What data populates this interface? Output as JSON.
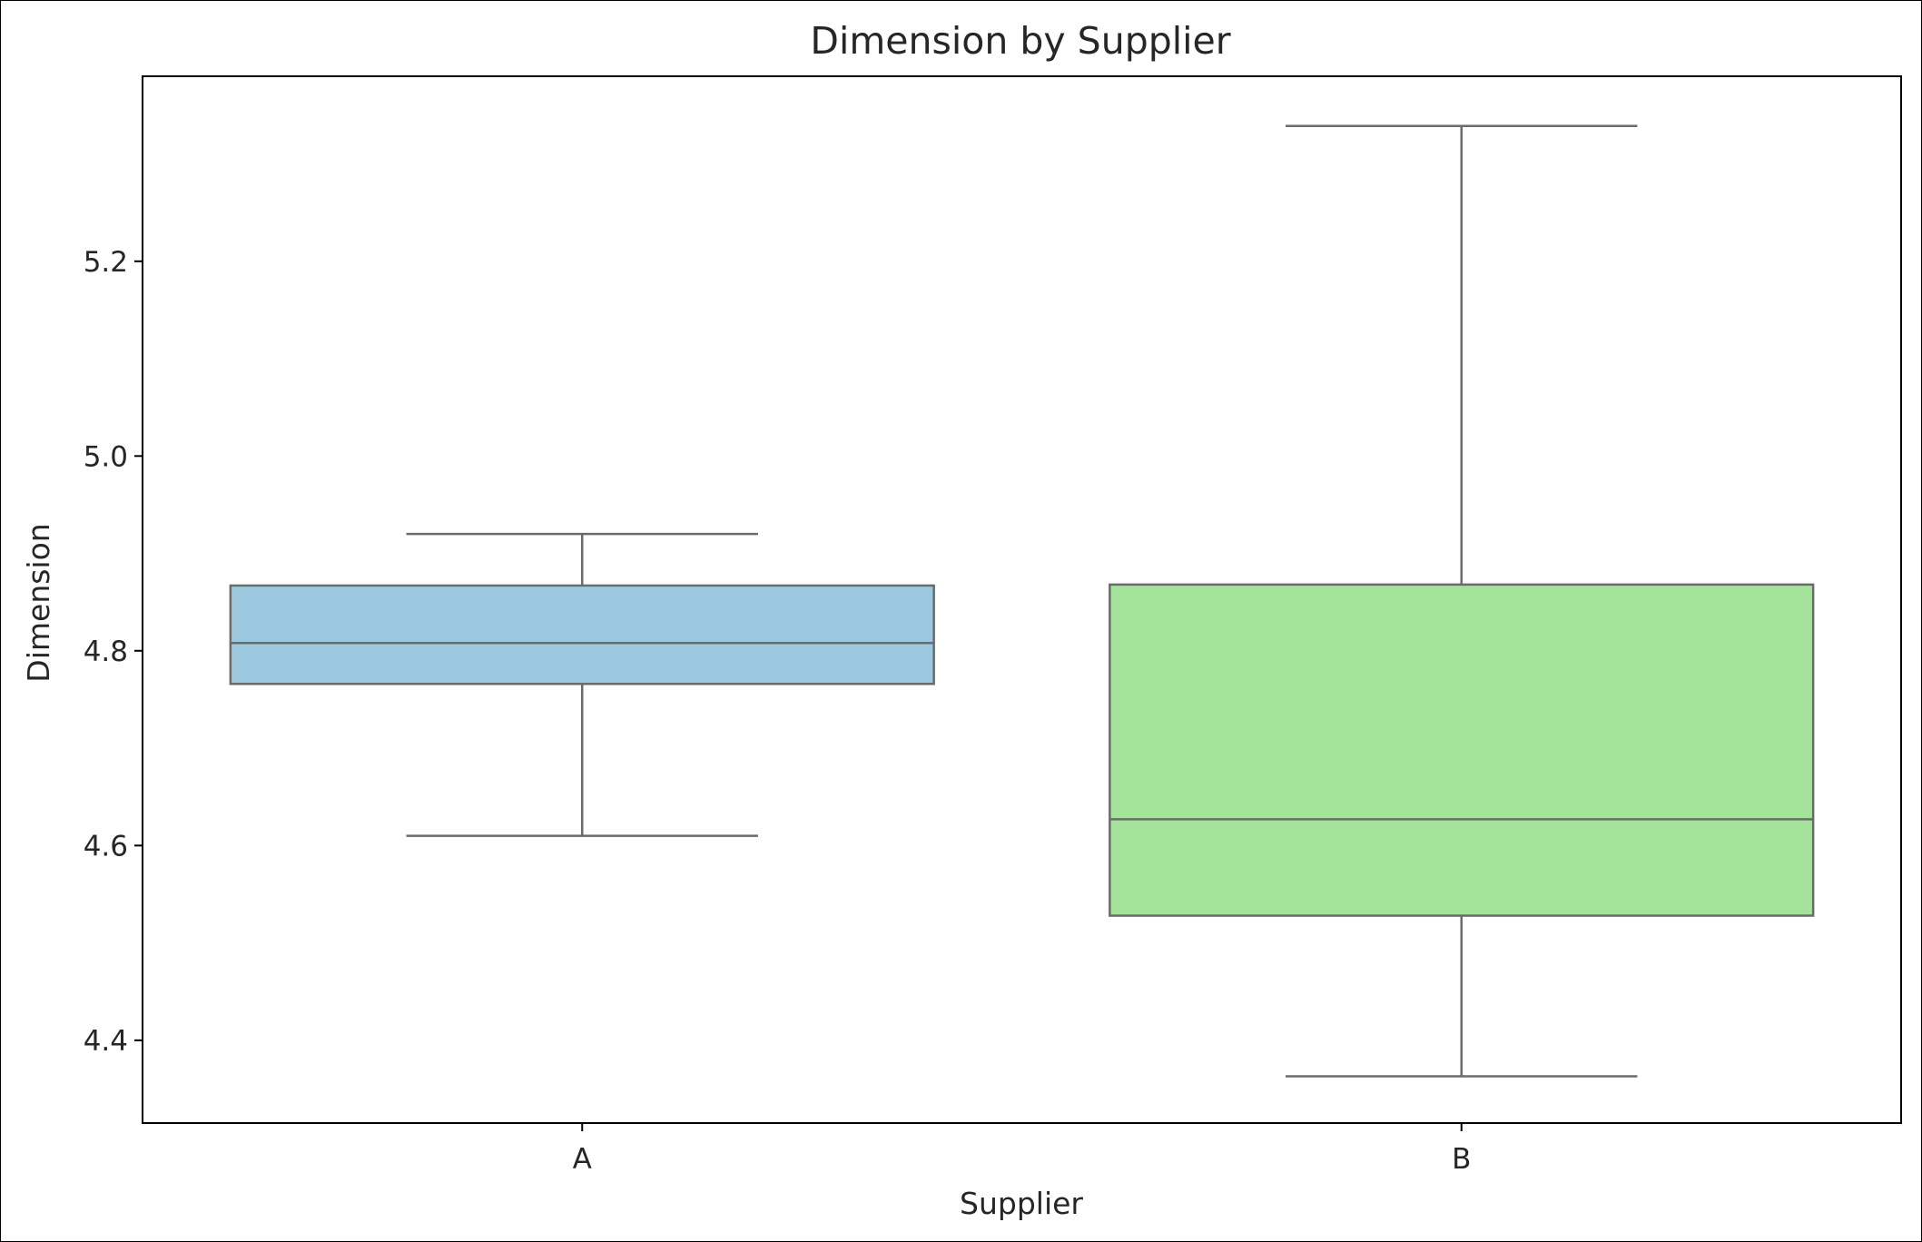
{
  "chart_data": {
    "type": "box",
    "title": "Dimension by Supplier",
    "xlabel": "Supplier",
    "ylabel": "Dimension",
    "categories": [
      "A",
      "B"
    ],
    "yticks": [
      "4.4",
      "4.6",
      "4.8",
      "5.0",
      "5.2"
    ],
    "ylim": [
      4.315,
      5.39
    ],
    "grid": false,
    "boxes": [
      {
        "category": "A",
        "whisker_low": 4.61,
        "q1": 4.766,
        "median": 4.808,
        "q3": 4.867,
        "whisker_high": 4.92,
        "color": "#9dc9e0"
      },
      {
        "category": "B",
        "whisker_low": 4.363,
        "q1": 4.528,
        "median": 4.627,
        "q3": 4.868,
        "whisker_high": 5.339,
        "color": "#a4e49a"
      }
    ],
    "line_color": "#6b6b6b",
    "axis_color": "#000000"
  }
}
